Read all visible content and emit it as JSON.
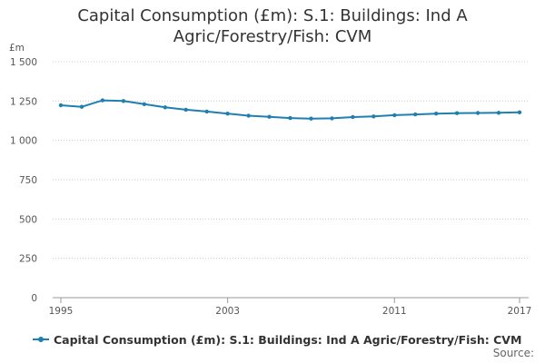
{
  "chart_data": {
    "type": "line",
    "title_lines": [
      "Capital Consumption (£m): S.1: Buildings: Ind A",
      "Agric/Forestry/Fish: CVM"
    ],
    "ylabel": "£m",
    "ylim": [
      0,
      1500
    ],
    "yticks": [
      0,
      250,
      500,
      750,
      1000,
      1250,
      1500
    ],
    "ytick_labels": [
      "0",
      "250",
      "500",
      "750",
      "1 000",
      "1 250",
      "1 500"
    ],
    "xlim": [
      1995,
      2017
    ],
    "xticks": [
      1995,
      2003,
      2011,
      2017
    ],
    "xtick_labels": [
      "1995",
      "2003",
      "2011",
      "2017"
    ],
    "grid": true,
    "legend_position": "bottom-left",
    "series": [
      {
        "name": "Capital Consumption (£m): S.1: Buildings: Ind A Agric/Forestry/Fish: CVM",
        "color": "#1f7fb0",
        "x": [
          1995,
          1996,
          1997,
          1998,
          1999,
          2000,
          2001,
          2002,
          2003,
          2004,
          2005,
          2006,
          2007,
          2008,
          2009,
          2010,
          2011,
          2012,
          2013,
          2014,
          2015,
          2016,
          2017
        ],
        "values": [
          1223,
          1213,
          1254,
          1250,
          1230,
          1210,
          1195,
          1183,
          1170,
          1157,
          1150,
          1142,
          1138,
          1140,
          1148,
          1152,
          1160,
          1165,
          1170,
          1173,
          1174,
          1175,
          1178
        ]
      }
    ]
  },
  "footer": {
    "source_label": "Source:"
  }
}
